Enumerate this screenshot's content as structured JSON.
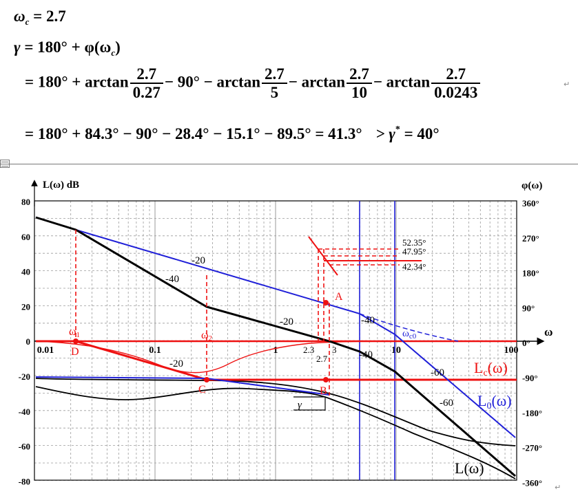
{
  "equations": {
    "line1": {
      "lhs": "ω",
      "sub": "c",
      "rhs": "= 2.7"
    },
    "line2": {
      "gamma": "γ",
      "eq": "= 180° + φ(ω",
      "sub": "c",
      "close": ")"
    },
    "line3": {
      "start": "= 180° + arctan",
      "f1_num": "2.7",
      "f1_den": "0.27",
      "mid1": "− 90° − arctan",
      "f2_num": "2.7",
      "f2_den": "5",
      "mid2": "− arctan",
      "f3_num": "2.7",
      "f3_den": "10",
      "mid3": "− arctan",
      "f4_num": "2.7",
      "f4_den": "0.0243"
    },
    "line4": {
      "text": "= 180° + 84.3° − 90° − 28.4° − 15.1° − 89.5° = 41.3°",
      "cmp": "> γ",
      "star": "*",
      "tail": "= 40°"
    }
  },
  "plot": {
    "left_axis_title": "L(ω)  dB",
    "right_axis_title": "φ(ω)",
    "x_axis_symbol": "ω",
    "left_ticks": [
      "80",
      "60",
      "40",
      "20",
      "0",
      "-20",
      "-40",
      "-60",
      "-80"
    ],
    "right_ticks": [
      "360°",
      "270°",
      "180°",
      "90°",
      "0°",
      "-90°",
      "-180°",
      "-270°",
      "-360°"
    ],
    "x_ticks": [
      "0.01",
      "0.1",
      "1",
      "10",
      "100"
    ],
    "x_minor_labels": {
      "a": "2.3",
      "b": "3",
      "c": "2.7"
    },
    "slope_labels": {
      "s1": "-40",
      "s2": "-20",
      "s3": "-20",
      "s4": "-40",
      "s5": "-20",
      "s6": "-40",
      "s7": "-60",
      "s8": "-60",
      "s9": "-40"
    },
    "point_labels": {
      "A": "A",
      "B": "B",
      "C": "C",
      "D": "D",
      "w1": "ω",
      "w1s": "1",
      "w2": "ω",
      "w2s": "2",
      "wc0": "ω",
      "wc0s": "c0"
    },
    "angle_labels": {
      "a1": "52.35°",
      "a2": "47.95°",
      "a3": "42.34°"
    },
    "gamma": "γ",
    "curve_labels": {
      "lc": "L",
      "lcs": "c",
      "lcp": "(ω)",
      "l0": "L",
      "l0s": "0",
      "l0p": "(ω)",
      "l": "L(ω)"
    }
  },
  "colors": {
    "red": "#ee1111",
    "blue": "#1f1fd8",
    "black": "#000000",
    "grid": "#9a9a9a"
  }
}
